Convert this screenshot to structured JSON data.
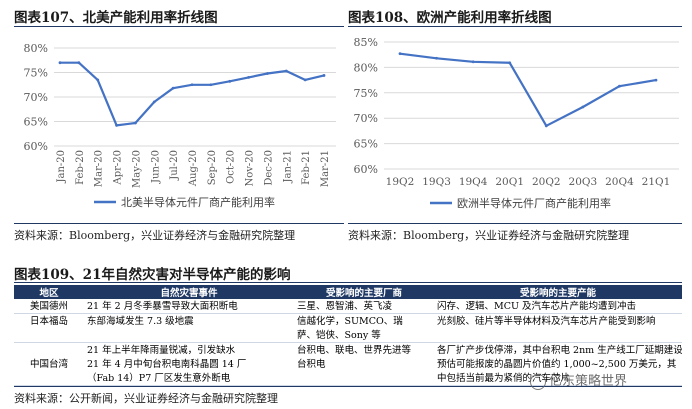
{
  "fig107": {
    "title": "图表107、北美产能利用率折线图",
    "source": "资料来源：Bloomberg，兴业证券经济与金融研究院整理"
  },
  "fig108": {
    "title": "图表108、欧洲产能利用率折线图",
    "source": "资料来源：Bloomberg，兴业证券经济与金融研究院整理"
  },
  "fig109": {
    "title": "图表109、21年自然灾害对半导体产能的影响",
    "headers": [
      "地区",
      "自然灾害事件",
      "受影响的主要厂商",
      "受影响的主要产能"
    ],
    "rows": [
      {
        "region": "美国德州",
        "event": "21 年 2 月冬季暴雪导致大面积断电",
        "makers": "三星、恩智浦、英飞凌",
        "capacity": "闪存、逻辑、MCU 及汽车芯片产能均遭到冲击"
      },
      {
        "region": "日本福岛",
        "event": "东部海域发生 7.3 级地震",
        "makers": "信越化学，SUMCO、瑞",
        "capacity": "光刻胶、硅片等半导体材料及汽车芯片产能受到影响"
      },
      {
        "region": "",
        "event": "",
        "makers": "萨、铠侠、Sony 等",
        "capacity": ""
      },
      {
        "region": "",
        "event": "21 年上半年降雨量锐减，引发缺水",
        "makers": "台积电、联电、世界先进等",
        "capacity": "各厂扩产步伐停滞，其中台积电 2nm 生产线工厂延期建设"
      },
      {
        "region": "中国台湾",
        "event": "21 年 4 月中旬台积电南科晶圆 14 厂",
        "makers": "台积电",
        "capacity": "预估可能报废的晶圆片价值约 1,000~2,500 万美元，其"
      },
      {
        "region": "",
        "event": "（Fab 14）P7 厂区发生意外断电",
        "makers": "",
        "capacity": "中包括当前最为紧俏的汽车芯片"
      }
    ],
    "source": "资料来源：公开新闻，兴业证券经济与金融研究院整理"
  },
  "watermark": "亿东策略世界",
  "chart_data": [
    {
      "type": "line",
      "title": "图表107、北美产能利用率折线图",
      "categories": [
        "Jan-20",
        "Feb-20",
        "Mar-20",
        "Apr-20",
        "May-20",
        "Jun-20",
        "Jul-20",
        "Aug-20",
        "Sep-20",
        "Oct-20",
        "Nov-20",
        "Dec-20",
        "Jan-21",
        "Feb-21",
        "Mar-21"
      ],
      "series": [
        {
          "name": "北美半导体元件厂商产能利用率",
          "values": [
            77.0,
            77.0,
            73.5,
            64.2,
            64.7,
            69.0,
            71.8,
            72.5,
            72.5,
            73.2,
            74.0,
            74.8,
            75.3,
            73.5,
            74.4
          ],
          "color": "#4472c4"
        }
      ],
      "yticks": [
        "60%",
        "65%",
        "70%",
        "75%",
        "80%"
      ],
      "ylim": [
        60,
        80
      ],
      "legend": "bottom"
    },
    {
      "type": "line",
      "title": "图表108、欧洲产能利用率折线图",
      "categories": [
        "19Q2",
        "19Q3",
        "19Q4",
        "20Q1",
        "20Q2",
        "20Q3",
        "20Q4",
        "21Q1"
      ],
      "series": [
        {
          "name": "欧洲半导体元件厂商产能利用率",
          "values": [
            82.7,
            81.8,
            81.1,
            80.9,
            68.5,
            72.2,
            76.3,
            77.5
          ],
          "color": "#4472c4"
        }
      ],
      "yticks": [
        "60%",
        "65%",
        "70%",
        "75%",
        "80%",
        "85%"
      ],
      "ylim": [
        60,
        85
      ],
      "legend": "bottom"
    }
  ]
}
